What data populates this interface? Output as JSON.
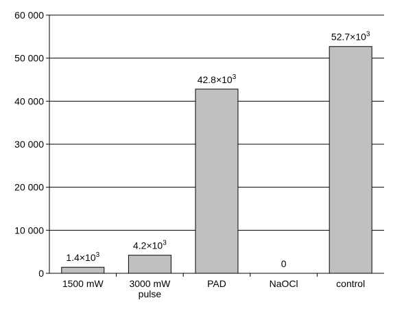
{
  "chart_data": {
    "type": "bar",
    "categories": [
      [
        "1500 mW"
      ],
      [
        "3000 mW",
        "pulse"
      ],
      [
        "PAD"
      ],
      [
        "NaOCl"
      ],
      [
        "control"
      ]
    ],
    "values": [
      1400,
      4200,
      42800,
      0,
      52700
    ],
    "data_labels": [
      {
        "mantissa": "1.4×10",
        "exp": "3"
      },
      {
        "mantissa": "4.2×10",
        "exp": "3"
      },
      {
        "mantissa": "42.8×10",
        "exp": "3"
      },
      {
        "mantissa": "0",
        "exp": ""
      },
      {
        "mantissa": "52.7×10",
        "exp": "3"
      }
    ],
    "y_ticks": [
      "0",
      "10 000",
      "20 000",
      "30 000",
      "40 000",
      "50 000",
      "60 000"
    ],
    "ylim": [
      0,
      60000
    ],
    "y_step": 10000,
    "title": "",
    "xlabel": "",
    "ylabel": "",
    "grid": true,
    "colors": {
      "bar_fill": "#c0c0c0",
      "bar_stroke": "#000000",
      "grid": "#000000",
      "axis": "#000000"
    }
  }
}
